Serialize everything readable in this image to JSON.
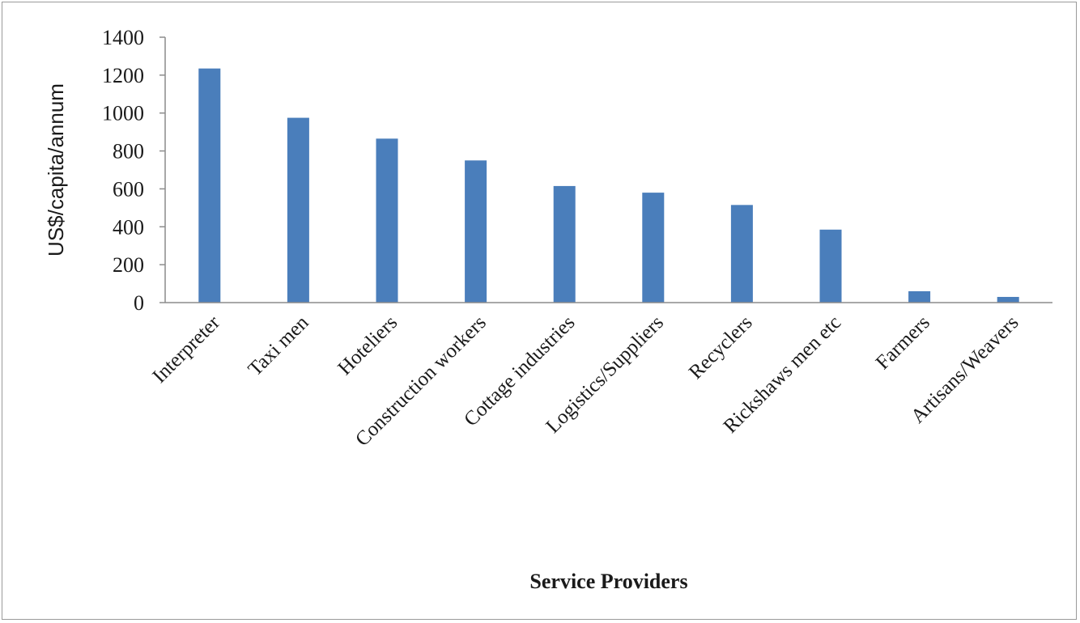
{
  "chart_data": {
    "type": "bar",
    "title": "",
    "xlabel": "Service Providers",
    "ylabel": "US$/capita/annum",
    "ylim": [
      0,
      1400
    ],
    "yticks": [
      "0",
      "200",
      "400",
      "600",
      "800",
      "1000",
      "1200",
      "1400"
    ],
    "grid": false,
    "legend": "none",
    "bar_color": "#4a7ebb",
    "categories": [
      "Interpreter",
      "Taxi men",
      "Hoteliers",
      "Construction workers",
      "Cottage industries",
      "Logistics/Suppliers",
      "Recyclers",
      "Rickshaws men etc",
      "Farmers",
      "Artisans/Weavers"
    ],
    "values": [
      1235,
      975,
      865,
      750,
      615,
      580,
      515,
      385,
      60,
      30
    ]
  }
}
